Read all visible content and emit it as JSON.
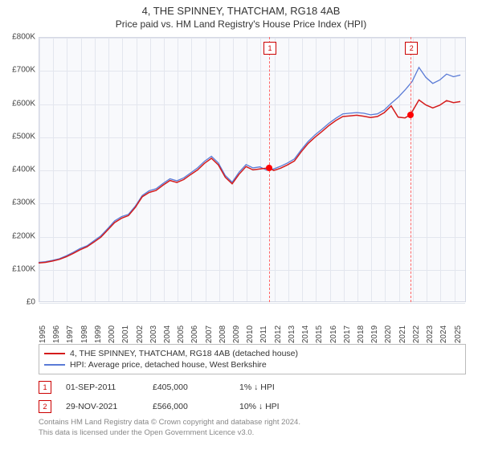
{
  "title": "4, THE SPINNEY, THATCHAM, RG18 4AB",
  "subtitle": "Price paid vs. HM Land Registry's House Price Index (HPI)",
  "chart": {
    "type": "line",
    "background_color": "#f8f9fc",
    "grid_color": "#e3e6ee",
    "axis_color": "#d4d8e4",
    "ylim": [
      0,
      800000
    ],
    "ytick_step": 100000,
    "yticks": [
      "£0",
      "£100K",
      "£200K",
      "£300K",
      "£400K",
      "£500K",
      "£600K",
      "£700K",
      "£800K"
    ],
    "xrange": [
      1995,
      2025.9
    ],
    "xticks": [
      1995,
      1996,
      1997,
      1998,
      1999,
      2000,
      2001,
      2002,
      2003,
      2004,
      2005,
      2006,
      2007,
      2008,
      2009,
      2010,
      2011,
      2012,
      2013,
      2014,
      2015,
      2016,
      2017,
      2018,
      2019,
      2020,
      2021,
      2022,
      2023,
      2024,
      2025
    ],
    "series": [
      {
        "name": "HPI: Average price, detached house, West Berkshire",
        "color": "#5a7bd6",
        "width": 1.3,
        "points": [
          [
            1995,
            120000
          ],
          [
            1995.5,
            122000
          ],
          [
            1996,
            126000
          ],
          [
            1996.5,
            131000
          ],
          [
            1997,
            140000
          ],
          [
            1997.5,
            150000
          ],
          [
            1998,
            162000
          ],
          [
            1998.5,
            170000
          ],
          [
            1999,
            185000
          ],
          [
            1999.5,
            200000
          ],
          [
            2000,
            222000
          ],
          [
            2000.5,
            245000
          ],
          [
            2001,
            258000
          ],
          [
            2001.5,
            265000
          ],
          [
            2002,
            290000
          ],
          [
            2002.5,
            322000
          ],
          [
            2003,
            336000
          ],
          [
            2003.5,
            342000
          ],
          [
            2004,
            358000
          ],
          [
            2004.5,
            372000
          ],
          [
            2005,
            366000
          ],
          [
            2005.5,
            375000
          ],
          [
            2006,
            390000
          ],
          [
            2006.5,
            405000
          ],
          [
            2007,
            425000
          ],
          [
            2007.5,
            440000
          ],
          [
            2008,
            420000
          ],
          [
            2008.5,
            382000
          ],
          [
            2009,
            362000
          ],
          [
            2009.5,
            392000
          ],
          [
            2010,
            415000
          ],
          [
            2010.5,
            405000
          ],
          [
            2011,
            408000
          ],
          [
            2011.5,
            398000
          ],
          [
            2012,
            402000
          ],
          [
            2012.5,
            410000
          ],
          [
            2013,
            420000
          ],
          [
            2013.5,
            432000
          ],
          [
            2014,
            460000
          ],
          [
            2014.5,
            485000
          ],
          [
            2015,
            505000
          ],
          [
            2015.5,
            522000
          ],
          [
            2016,
            540000
          ],
          [
            2016.5,
            555000
          ],
          [
            2017,
            568000
          ],
          [
            2017.5,
            570000
          ],
          [
            2018,
            572000
          ],
          [
            2018.5,
            570000
          ],
          [
            2019,
            565000
          ],
          [
            2019.5,
            568000
          ],
          [
            2020,
            580000
          ],
          [
            2020.5,
            600000
          ],
          [
            2021,
            618000
          ],
          [
            2021.5,
            640000
          ],
          [
            2022,
            665000
          ],
          [
            2022.5,
            708000
          ],
          [
            2023,
            678000
          ],
          [
            2023.5,
            660000
          ],
          [
            2024,
            670000
          ],
          [
            2024.5,
            688000
          ],
          [
            2025,
            680000
          ],
          [
            2025.5,
            685000
          ]
        ]
      },
      {
        "name": "4, THE SPINNEY, THATCHAM, RG18 4AB (detached house)",
        "color": "#d41c1c",
        "width": 1.5,
        "points": [
          [
            1995,
            118000
          ],
          [
            1995.5,
            120000
          ],
          [
            1996,
            124000
          ],
          [
            1996.5,
            129000
          ],
          [
            1997,
            137000
          ],
          [
            1997.5,
            147000
          ],
          [
            1998,
            158000
          ],
          [
            1998.5,
            167000
          ],
          [
            1999,
            181000
          ],
          [
            1999.5,
            196000
          ],
          [
            2000,
            218000
          ],
          [
            2000.5,
            240000
          ],
          [
            2001,
            253000
          ],
          [
            2001.5,
            261000
          ],
          [
            2002,
            286000
          ],
          [
            2002.5,
            318000
          ],
          [
            2003,
            331000
          ],
          [
            2003.5,
            337000
          ],
          [
            2004,
            353000
          ],
          [
            2004.5,
            367000
          ],
          [
            2005,
            361000
          ],
          [
            2005.5,
            370000
          ],
          [
            2006,
            385000
          ],
          [
            2006.5,
            399000
          ],
          [
            2007,
            419000
          ],
          [
            2007.5,
            434000
          ],
          [
            2008,
            414000
          ],
          [
            2008.5,
            377000
          ],
          [
            2009,
            357000
          ],
          [
            2009.5,
            386000
          ],
          [
            2010,
            409000
          ],
          [
            2010.5,
            399000
          ],
          [
            2011,
            402000
          ],
          [
            2011.67,
            405000
          ],
          [
            2012,
            397000
          ],
          [
            2012.5,
            404000
          ],
          [
            2013,
            414000
          ],
          [
            2013.5,
            426000
          ],
          [
            2014,
            454000
          ],
          [
            2014.5,
            479000
          ],
          [
            2015,
            498000
          ],
          [
            2015.5,
            515000
          ],
          [
            2016,
            533000
          ],
          [
            2016.5,
            548000
          ],
          [
            2017,
            560000
          ],
          [
            2017.5,
            562000
          ],
          [
            2018,
            564000
          ],
          [
            2018.5,
            561000
          ],
          [
            2019,
            557000
          ],
          [
            2019.5,
            560000
          ],
          [
            2020,
            572000
          ],
          [
            2020.5,
            592000
          ],
          [
            2021,
            558000
          ],
          [
            2021.5,
            556000
          ],
          [
            2021.91,
            566000
          ],
          [
            2022,
            574000
          ],
          [
            2022.5,
            610000
          ],
          [
            2023,
            595000
          ],
          [
            2023.5,
            586000
          ],
          [
            2024,
            594000
          ],
          [
            2024.5,
            608000
          ],
          [
            2025,
            602000
          ],
          [
            2025.5,
            605000
          ]
        ]
      }
    ],
    "markers": [
      {
        "n": "1",
        "x": 2011.67,
        "y": 405000
      },
      {
        "n": "2",
        "x": 2021.91,
        "y": 566000
      }
    ]
  },
  "legend": {
    "border_color": "#bbbbbb",
    "items": [
      {
        "color": "#d41c1c",
        "label": "4, THE SPINNEY, THATCHAM, RG18 4AB (detached house)"
      },
      {
        "color": "#5a7bd6",
        "label": "HPI: Average price, detached house, West Berkshire"
      }
    ]
  },
  "sales": [
    {
      "n": "1",
      "date": "01-SEP-2011",
      "price": "£405,000",
      "diff": "1% ↓ HPI"
    },
    {
      "n": "2",
      "date": "29-NOV-2021",
      "price": "£566,000",
      "diff": "10% ↓ HPI"
    }
  ],
  "attribution": {
    "line1": "Contains HM Land Registry data © Crown copyright and database right 2024.",
    "line2": "This data is licensed under the Open Government Licence v3.0."
  }
}
